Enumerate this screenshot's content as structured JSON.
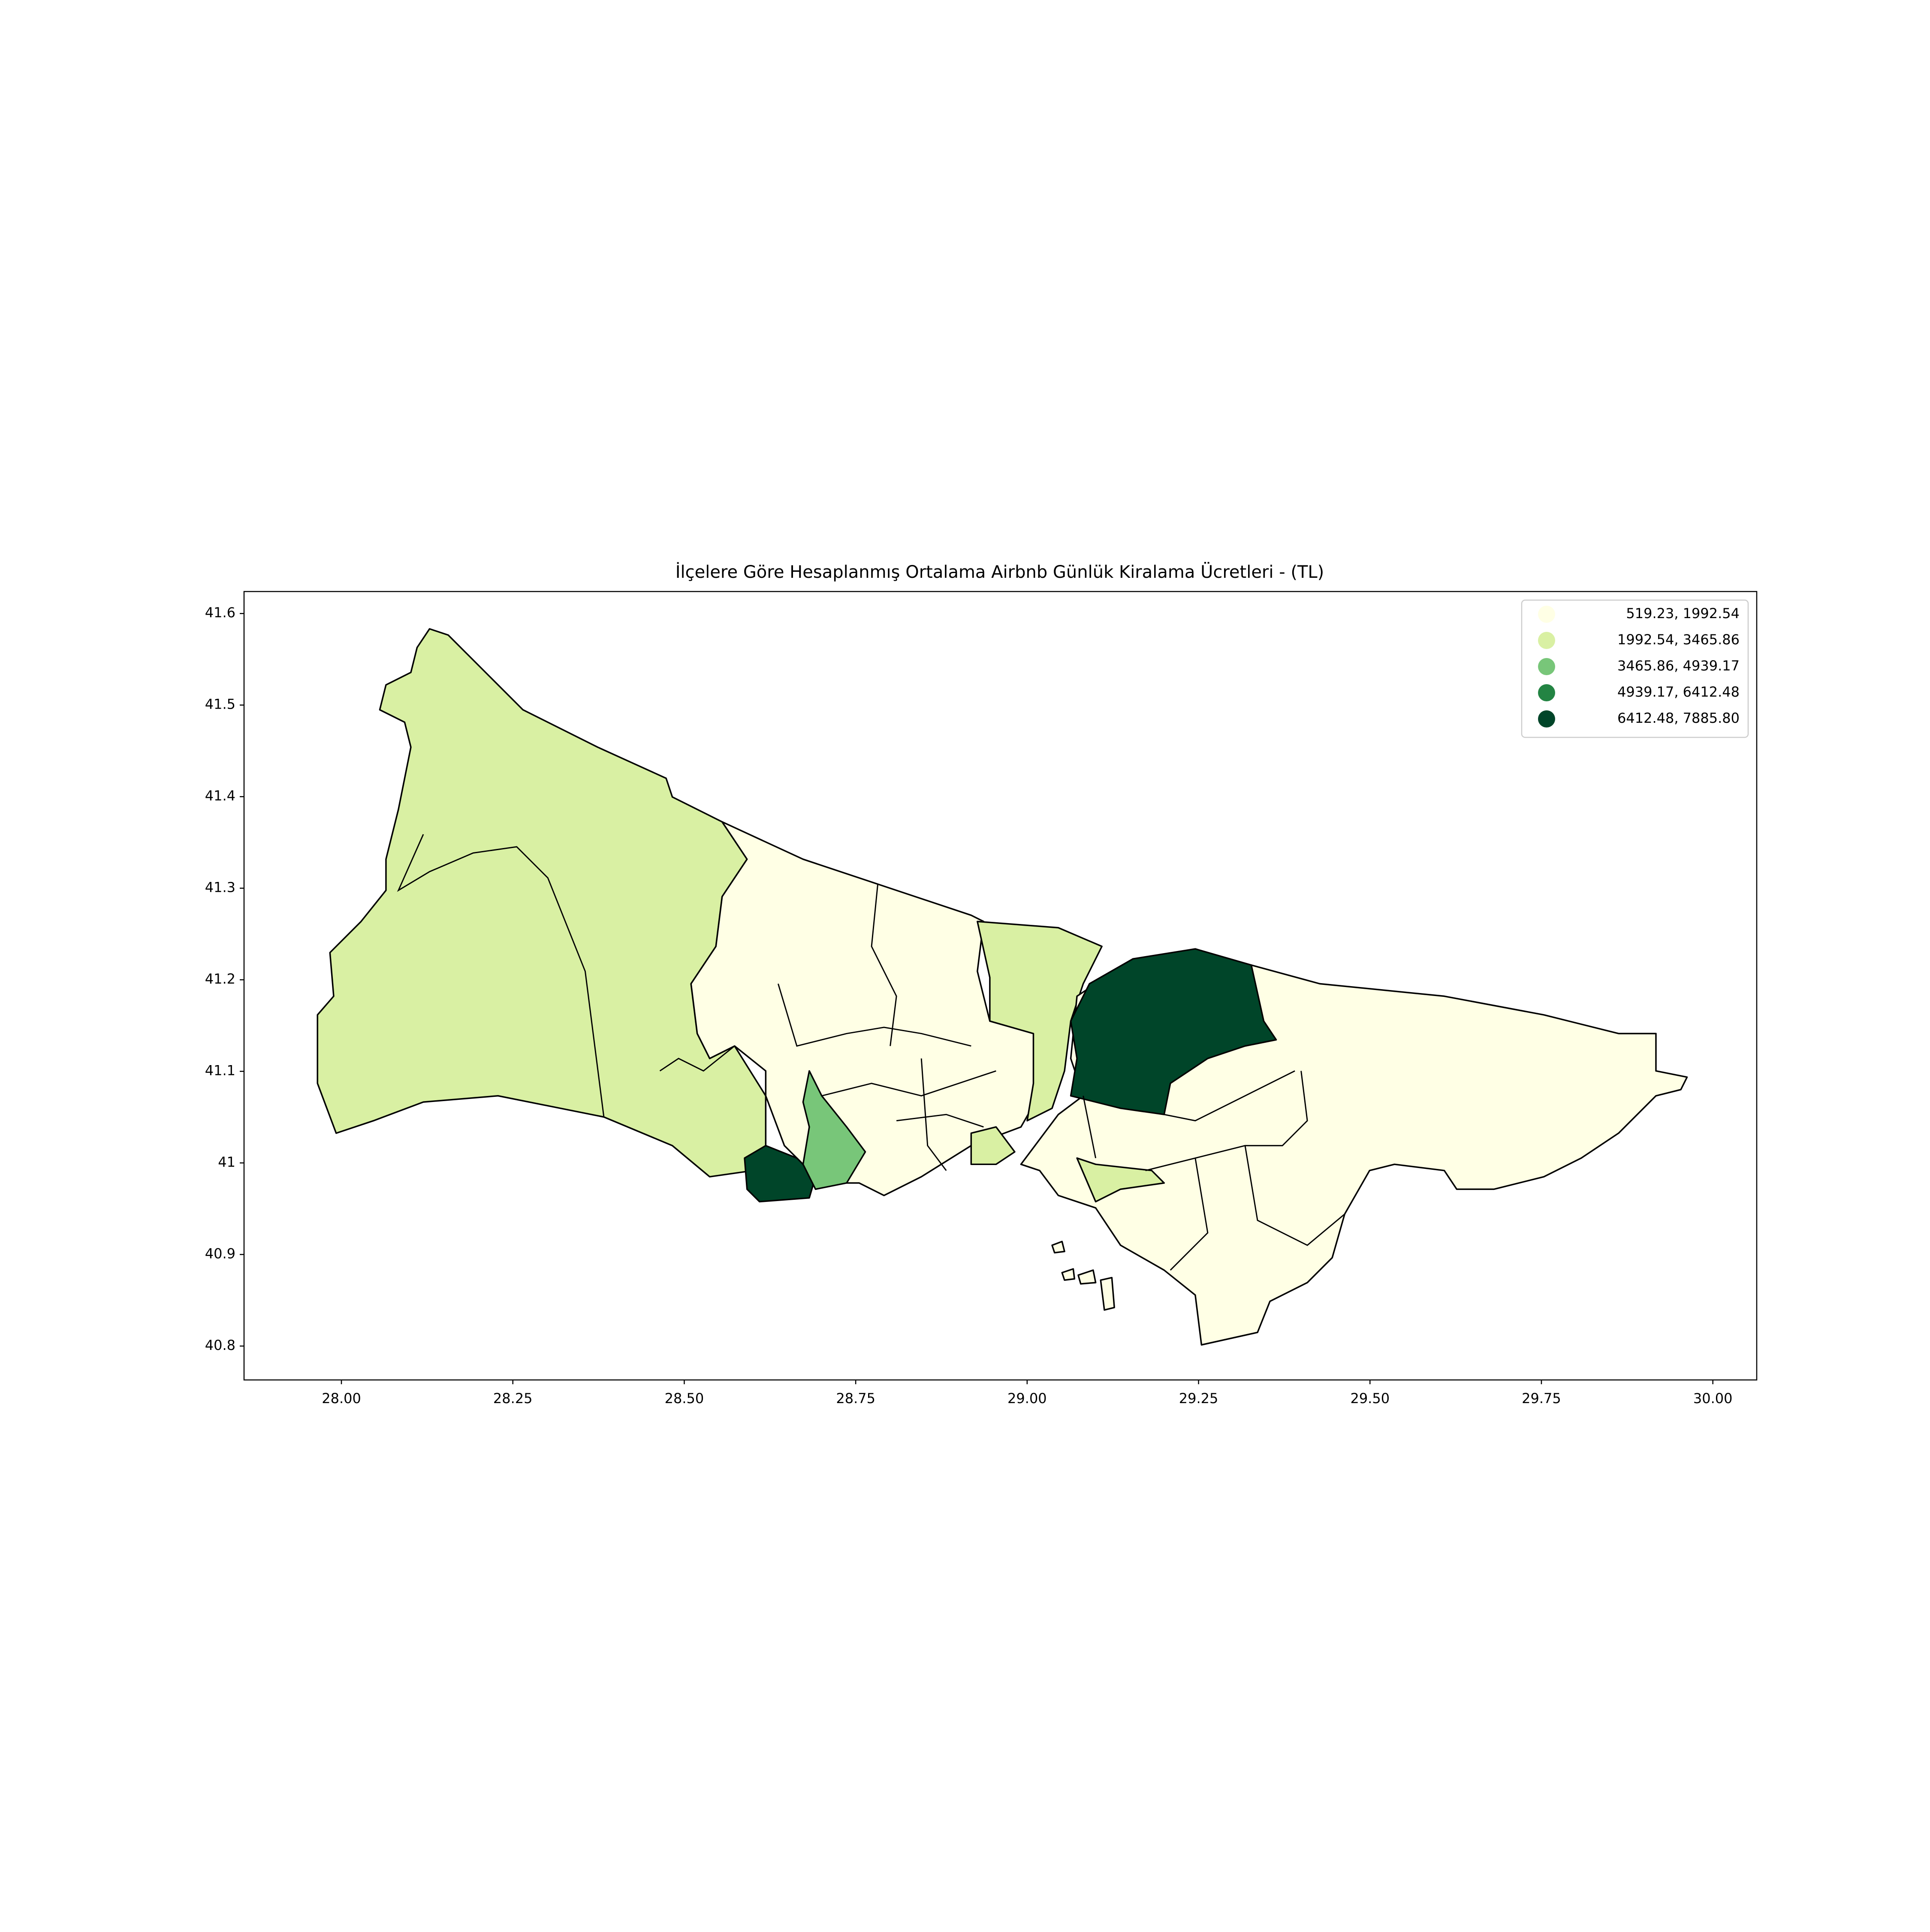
{
  "chart_data": {
    "type": "choropleth",
    "title": "İlçelere Göre Hesaplanmış Ortalama Airbnb Günlük Kiralama Ücretleri - (TL)",
    "xlim": [
      27.858,
      30.064
    ],
    "ylim": [
      40.763,
      41.624
    ],
    "xticks": [
      {
        "value": 28.0,
        "label": "28.00"
      },
      {
        "value": 28.25,
        "label": "28.25"
      },
      {
        "value": 28.5,
        "label": "28.50"
      },
      {
        "value": 28.75,
        "label": "28.75"
      },
      {
        "value": 29.0,
        "label": "29.00"
      },
      {
        "value": 29.25,
        "label": "29.25"
      },
      {
        "value": 29.5,
        "label": "29.50"
      },
      {
        "value": 29.75,
        "label": "29.75"
      },
      {
        "value": 30.0,
        "label": "30.00"
      }
    ],
    "yticks": [
      40.8,
      40.9,
      41.0,
      41.1,
      41.2,
      41.3,
      41.4,
      41.5,
      41.6
    ],
    "legend_position": "upper right",
    "legend": [
      {
        "label": "519.23, 1992.54",
        "color": "#ffffe5"
      },
      {
        "label": "1992.54, 3465.86",
        "color": "#d9f0a3"
      },
      {
        "label": "3465.86, 4939.17",
        "color": "#78c679"
      },
      {
        "label": "4939.17, 6412.48",
        "color": "#238443"
      },
      {
        "label": "6412.48, 7885.80",
        "color": "#004529"
      }
    ]
  }
}
